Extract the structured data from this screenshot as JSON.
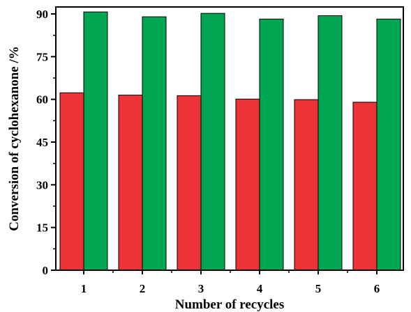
{
  "chart_data": {
    "type": "bar",
    "categories": [
      "1",
      "2",
      "3",
      "4",
      "5",
      "6"
    ],
    "series": [
      {
        "values": [
          62.3,
          61.5,
          61.3,
          60.1,
          59.9,
          59.0
        ],
        "color": "#ee3338"
      },
      {
        "values": [
          90.7,
          89.0,
          90.2,
          88.2,
          89.4,
          88.2
        ],
        "color": "#00a651"
      }
    ],
    "xlabel": "Number of recycles",
    "ylabel": "Conversion of cyclohexanone /%",
    "ylim": [
      0,
      90
    ],
    "yticks": [
      "0",
      "15",
      "30",
      "45",
      "60",
      "75",
      "90"
    ],
    "grid": false,
    "legend": "none"
  }
}
